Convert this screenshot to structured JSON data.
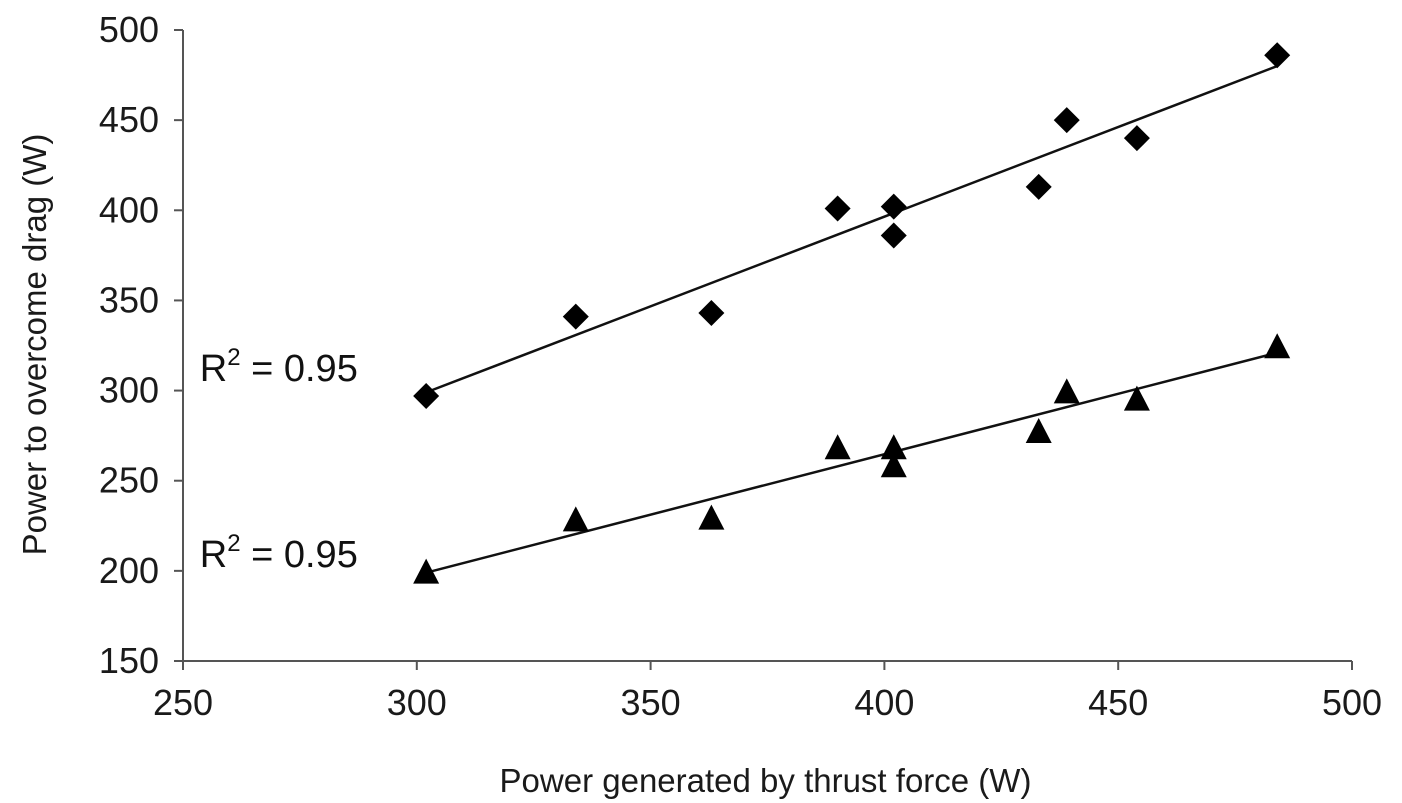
{
  "chart_data": {
    "type": "scatter",
    "title": "",
    "xlabel": "Power generated by thrust force (W)",
    "ylabel": "Power to overcome drag (W)",
    "xlim": [
      250,
      500
    ],
    "ylim": [
      150,
      500
    ],
    "xticks": [
      250,
      300,
      350,
      400,
      450,
      500
    ],
    "yticks": [
      150,
      200,
      250,
      300,
      350,
      400,
      450,
      500
    ],
    "grid": false,
    "legend": "none",
    "series": [
      {
        "marker": "diamond",
        "color": "#000000",
        "points": [
          {
            "x": 302,
            "y": 297
          },
          {
            "x": 334,
            "y": 341
          },
          {
            "x": 363,
            "y": 343
          },
          {
            "x": 390,
            "y": 401
          },
          {
            "x": 402,
            "y": 402
          },
          {
            "x": 402,
            "y": 386
          },
          {
            "x": 433,
            "y": 413
          },
          {
            "x": 439,
            "y": 450
          },
          {
            "x": 454,
            "y": 440
          },
          {
            "x": 484,
            "y": 486
          }
        ],
        "trendline": {
          "x1": 302,
          "y1": 299,
          "x2": 484,
          "y2": 480
        },
        "annotation": {
          "base": "R",
          "sup": "2",
          "rest": " = 0.95",
          "x": 260,
          "y": 313
        }
      },
      {
        "marker": "triangle",
        "color": "#000000",
        "points": [
          {
            "x": 302,
            "y": 199
          },
          {
            "x": 334,
            "y": 228
          },
          {
            "x": 363,
            "y": 229
          },
          {
            "x": 390,
            "y": 268
          },
          {
            "x": 402,
            "y": 268
          },
          {
            "x": 402,
            "y": 258
          },
          {
            "x": 433,
            "y": 277
          },
          {
            "x": 439,
            "y": 299
          },
          {
            "x": 454,
            "y": 295
          },
          {
            "x": 484,
            "y": 324
          }
        ],
        "trendline": {
          "x1": 302,
          "y1": 199,
          "x2": 484,
          "y2": 321
        },
        "annotation": {
          "base": "R",
          "sup": "2",
          "rest": " = 0.95",
          "x": 260,
          "y": 210
        }
      }
    ]
  }
}
